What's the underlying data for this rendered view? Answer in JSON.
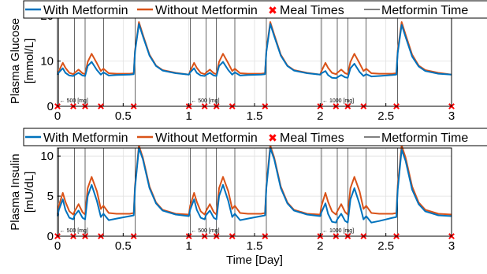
{
  "chart_data": [
    {
      "type": "line",
      "ylabel": [
        "Plasma Glucose",
        "[mmol/L]"
      ],
      "xlim": [
        0,
        3
      ],
      "ylim": [
        0,
        20
      ],
      "xticks": [
        0,
        0.5,
        1,
        1.5,
        2,
        2.5,
        3
      ],
      "xtick_labels": [
        "0",
        "0.5",
        "1",
        "1.5",
        "2",
        "2.5",
        "3"
      ],
      "yticks": [
        0,
        10,
        20
      ],
      "ytick_labels": [
        "0",
        "10",
        "20"
      ],
      "grid": true,
      "legend": {
        "placement": "top",
        "entries": [
          "With Metformin",
          "Without Metformin",
          "Meal Times",
          "Metformin Time"
        ]
      },
      "series": [
        {
          "name": "With Metformin",
          "x": [
            0,
            0.01,
            0.04,
            0.06,
            0.09,
            0.12,
            0.13,
            0.16,
            0.19,
            0.21,
            0.23,
            0.26,
            0.3,
            0.33,
            0.35,
            0.39,
            0.45,
            0.55,
            0.58,
            0.59,
            0.62,
            0.65,
            0.7,
            0.75,
            0.8,
            0.9,
            1.0,
            1.01,
            1.04,
            1.06,
            1.09,
            1.12,
            1.13,
            1.16,
            1.19,
            1.21,
            1.23,
            1.26,
            1.3,
            1.33,
            1.35,
            1.39,
            1.45,
            1.55,
            1.58,
            1.59,
            1.62,
            1.65,
            1.7,
            1.75,
            1.8,
            1.9,
            2.0,
            2.01,
            2.04,
            2.06,
            2.09,
            2.12,
            2.13,
            2.16,
            2.19,
            2.21,
            2.23,
            2.26,
            2.3,
            2.33,
            2.35,
            2.39,
            2.45,
            2.55,
            2.58,
            2.59,
            2.62,
            2.65,
            2.7,
            2.75,
            2.8,
            2.9,
            3.0
          ],
          "y": [
            7.0,
            7.5,
            8.4,
            7.4,
            6.8,
            6.7,
            6.9,
            7.4,
            6.8,
            6.7,
            8.9,
            9.8,
            8.0,
            7.0,
            7.5,
            6.8,
            6.9,
            7.0,
            7.1,
            12.0,
            18.2,
            15.5,
            11.2,
            8.9,
            7.9,
            7.3,
            7.0,
            7.5,
            8.4,
            7.4,
            6.8,
            6.7,
            6.9,
            7.4,
            6.8,
            6.7,
            8.9,
            9.8,
            8.0,
            7.0,
            7.5,
            6.8,
            6.9,
            7.0,
            7.1,
            12.0,
            18.2,
            15.5,
            11.2,
            8.9,
            7.9,
            7.3,
            7.0,
            7.3,
            7.8,
            6.9,
            6.3,
            6.2,
            6.4,
            6.9,
            6.4,
            6.3,
            8.4,
            9.4,
            7.6,
            6.7,
            7.1,
            6.6,
            6.7,
            6.9,
            7.0,
            11.8,
            18.0,
            15.3,
            11.0,
            8.8,
            7.8,
            7.2,
            7.0
          ]
        },
        {
          "name": "Without Metformin",
          "x": [
            0,
            0.01,
            0.04,
            0.06,
            0.09,
            0.12,
            0.13,
            0.16,
            0.19,
            0.21,
            0.23,
            0.26,
            0.3,
            0.33,
            0.35,
            0.39,
            0.45,
            0.55,
            0.58,
            0.59,
            0.62,
            0.65,
            0.7,
            0.75,
            0.8,
            0.9,
            1.0,
            1.01,
            1.04,
            1.06,
            1.09,
            1.12,
            1.13,
            1.16,
            1.19,
            1.21,
            1.23,
            1.26,
            1.3,
            1.33,
            1.35,
            1.39,
            1.45,
            1.55,
            1.58,
            1.59,
            1.62,
            1.65,
            1.7,
            1.75,
            1.8,
            1.9,
            2.0,
            2.01,
            2.04,
            2.06,
            2.09,
            2.12,
            2.13,
            2.16,
            2.19,
            2.21,
            2.23,
            2.26,
            2.3,
            2.33,
            2.35,
            2.39,
            2.45,
            2.55,
            2.58,
            2.59,
            2.62,
            2.65,
            2.7,
            2.75,
            2.8,
            2.9,
            3.0
          ],
          "y": [
            7.0,
            7.8,
            9.6,
            8.5,
            7.4,
            7.1,
            7.4,
            8.1,
            7.3,
            7.1,
            9.8,
            11.6,
            9.5,
            7.8,
            8.3,
            7.3,
            7.2,
            7.2,
            7.3,
            12.3,
            18.6,
            15.8,
            11.4,
            9.0,
            8.0,
            7.4,
            7.0,
            7.8,
            9.6,
            8.5,
            7.4,
            7.1,
            7.4,
            8.1,
            7.3,
            7.1,
            9.8,
            11.6,
            9.5,
            7.8,
            8.3,
            7.3,
            7.2,
            7.2,
            7.3,
            12.3,
            18.6,
            15.8,
            11.4,
            9.0,
            8.0,
            7.4,
            7.0,
            7.8,
            9.6,
            8.5,
            7.4,
            7.1,
            7.4,
            8.1,
            7.3,
            7.1,
            9.8,
            11.6,
            9.5,
            7.8,
            8.3,
            7.3,
            7.2,
            7.2,
            7.3,
            12.3,
            18.6,
            15.8,
            11.4,
            9.0,
            8.0,
            7.4,
            7.0
          ]
        }
      ],
      "meal_times": [
        0,
        0.12,
        0.21,
        0.33,
        0.58,
        1,
        1.12,
        1.21,
        1.33,
        1.58,
        2,
        2.12,
        2.21,
        2.33,
        2.58,
        3
      ],
      "metformin_times": [
        0.01,
        0.13,
        0.21,
        0.35,
        0.59,
        1.01,
        1.13,
        1.21,
        1.35,
        1.59,
        2.01,
        2.13,
        2.21,
        2.35,
        2.59
      ],
      "annotations": [
        {
          "text": "500 [mg]",
          "x": 0.01
        },
        {
          "text": "500 [mg]",
          "x": 1.01
        },
        {
          "text": "1000 [mg]",
          "x": 2.01
        }
      ]
    },
    {
      "type": "line",
      "xlabel": "Time [Day]",
      "ylabel": [
        "Plasma Insulin",
        "[mU/dL]"
      ],
      "xlim": [
        0,
        3
      ],
      "ylim": [
        0,
        11
      ],
      "xticks": [
        0,
        0.5,
        1,
        1.5,
        2,
        2.5,
        3
      ],
      "xtick_labels": [
        "0",
        "0.5",
        "1",
        "1.5",
        "2",
        "2.5",
        "3"
      ],
      "yticks": [
        0,
        5,
        10
      ],
      "ytick_labels": [
        "0",
        "5",
        "10"
      ],
      "grid": true,
      "legend": {
        "placement": "top",
        "entries": [
          "With Metformin",
          "Without Metformin",
          "Meal Times",
          "Metformin Time"
        ]
      },
      "series": [
        {
          "name": "With Metformin",
          "x": [
            0,
            0.01,
            0.04,
            0.06,
            0.09,
            0.12,
            0.13,
            0.16,
            0.19,
            0.21,
            0.23,
            0.26,
            0.3,
            0.33,
            0.35,
            0.39,
            0.45,
            0.55,
            0.58,
            0.59,
            0.62,
            0.65,
            0.7,
            0.75,
            0.8,
            0.9,
            1.0,
            1.01,
            1.04,
            1.06,
            1.09,
            1.12,
            1.13,
            1.16,
            1.19,
            1.21,
            1.23,
            1.26,
            1.3,
            1.33,
            1.35,
            1.39,
            1.45,
            1.55,
            1.58,
            1.59,
            1.62,
            1.65,
            1.7,
            1.75,
            1.8,
            1.9,
            2.0,
            2.01,
            2.04,
            2.06,
            2.09,
            2.12,
            2.13,
            2.16,
            2.19,
            2.21,
            2.23,
            2.26,
            2.3,
            2.33,
            2.35,
            2.39,
            2.45,
            2.55,
            2.58,
            2.59,
            2.62,
            2.65,
            2.7,
            2.75,
            2.8,
            2.9,
            3.0
          ],
          "y": [
            2.5,
            3.3,
            4.6,
            3.3,
            2.3,
            2.1,
            2.6,
            3.2,
            2.3,
            2.1,
            5.0,
            6.4,
            4.4,
            2.4,
            2.8,
            2.0,
            2.2,
            2.5,
            2.6,
            6.0,
            11.0,
            9.6,
            6.0,
            4.1,
            3.2,
            2.7,
            2.5,
            3.3,
            4.6,
            3.3,
            2.3,
            2.1,
            2.6,
            3.2,
            2.3,
            2.1,
            5.0,
            6.4,
            4.4,
            2.4,
            2.8,
            2.0,
            2.2,
            2.5,
            2.6,
            6.0,
            11.0,
            9.6,
            6.0,
            4.1,
            3.2,
            2.7,
            2.5,
            3.0,
            4.1,
            2.8,
            1.8,
            1.7,
            2.1,
            2.8,
            1.9,
            1.7,
            4.6,
            6.0,
            4.0,
            2.1,
            2.5,
            1.7,
            1.9,
            2.3,
            2.4,
            5.8,
            10.8,
            9.4,
            5.8,
            4.0,
            3.1,
            2.6,
            2.5
          ]
        },
        {
          "name": "Without Metformin",
          "x": [
            0,
            0.01,
            0.04,
            0.06,
            0.09,
            0.12,
            0.13,
            0.16,
            0.19,
            0.21,
            0.23,
            0.26,
            0.3,
            0.33,
            0.35,
            0.39,
            0.45,
            0.55,
            0.58,
            0.59,
            0.62,
            0.65,
            0.7,
            0.75,
            0.8,
            0.9,
            1.0,
            1.01,
            1.04,
            1.06,
            1.09,
            1.12,
            1.13,
            1.16,
            1.19,
            1.21,
            1.23,
            1.26,
            1.3,
            1.33,
            1.35,
            1.39,
            1.45,
            1.55,
            1.58,
            1.59,
            1.62,
            1.65,
            1.7,
            1.75,
            1.8,
            1.9,
            2.0,
            2.01,
            2.04,
            2.06,
            2.09,
            2.12,
            2.13,
            2.16,
            2.19,
            2.21,
            2.23,
            2.26,
            2.3,
            2.33,
            2.35,
            2.39,
            2.45,
            2.55,
            2.58,
            2.59,
            2.62,
            2.65,
            2.7,
            2.75,
            2.8,
            2.9,
            3.0
          ],
          "y": [
            2.7,
            3.8,
            5.4,
            4.3,
            3.1,
            2.7,
            3.1,
            4.0,
            3.0,
            2.7,
            6.0,
            7.4,
            5.6,
            3.4,
            3.8,
            2.9,
            2.8,
            2.8,
            2.9,
            6.3,
            11.3,
            9.8,
            6.2,
            4.2,
            3.3,
            2.8,
            2.7,
            3.8,
            5.4,
            4.3,
            3.1,
            2.7,
            3.1,
            4.0,
            3.0,
            2.7,
            6.0,
            7.4,
            5.6,
            3.4,
            3.8,
            2.9,
            2.8,
            2.8,
            2.9,
            6.3,
            11.3,
            9.8,
            6.2,
            4.2,
            3.3,
            2.8,
            2.7,
            3.8,
            5.4,
            4.3,
            3.1,
            2.7,
            3.1,
            4.0,
            3.0,
            2.7,
            6.0,
            7.4,
            5.6,
            3.4,
            3.8,
            2.9,
            2.8,
            2.8,
            2.9,
            6.3,
            11.3,
            9.8,
            6.2,
            4.2,
            3.3,
            2.8,
            2.7
          ]
        }
      ],
      "meal_times": [
        0,
        0.12,
        0.21,
        0.33,
        0.58,
        1,
        1.12,
        1.21,
        1.33,
        1.58,
        2,
        2.12,
        2.21,
        2.33,
        2.58,
        3
      ],
      "metformin_times": [
        0.01,
        0.13,
        0.21,
        0.35,
        0.59,
        1.01,
        1.13,
        1.21,
        1.35,
        1.59,
        2.01,
        2.13,
        2.21,
        2.35,
        2.59
      ],
      "annotations": [
        {
          "text": "500 [mg]",
          "x": 0.01
        },
        {
          "text": "500 [mg]",
          "x": 1.01
        },
        {
          "text": "1000 [mg]",
          "x": 2.01
        }
      ]
    }
  ],
  "colors": {
    "with_metformin": "#0072bd",
    "without_metformin": "#d95319",
    "meal_marker": "#ff0000",
    "metformin_line": "#000000",
    "grid": "#e0e0e0"
  }
}
